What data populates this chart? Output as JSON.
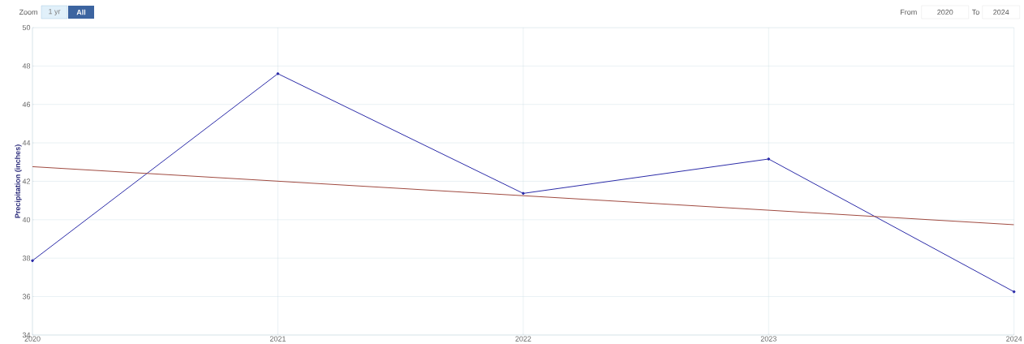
{
  "chart_data": {
    "type": "line",
    "ylabel": "Precipitation (inches)",
    "x": [
      2020,
      2021,
      2022,
      2023,
      2024
    ],
    "series": [
      {
        "color": "#2b2ba8",
        "values": [
          37.87,
          47.6,
          41.37,
          43.16,
          36.25
        ],
        "marker": "circle"
      },
      {
        "type": "line",
        "color": "#a04a40",
        "x": [
          2020,
          2024
        ],
        "values": [
          42.76,
          39.74
        ],
        "marker": "none"
      }
    ],
    "xlim": [
      2020,
      2024
    ],
    "xticks": [
      2020,
      2021,
      2022,
      2023,
      2024
    ],
    "ylim": [
      34,
      50
    ],
    "yticks": [
      34,
      36,
      38,
      40,
      42,
      44,
      46,
      48,
      50
    ],
    "grid": true,
    "line_style": "solid",
    "annotations": [
      "Zoom",
      "1 yr",
      "All",
      "From",
      "2020",
      "To",
      "2024"
    ]
  }
}
